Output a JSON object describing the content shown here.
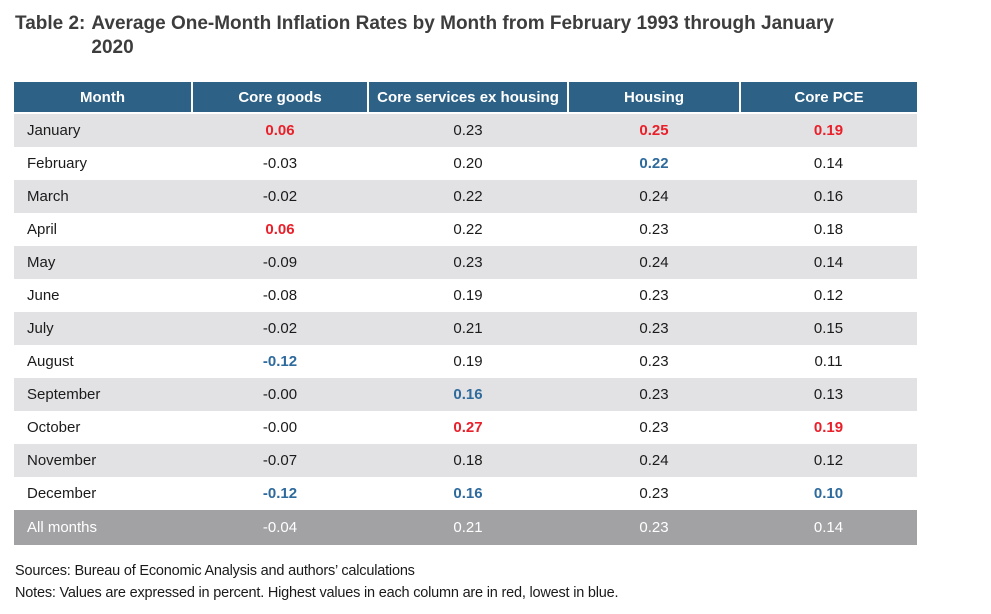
{
  "title": {
    "label": "Table 2:",
    "text": "Average One-Month Inflation Rates by Month from February 1993 through January 2020"
  },
  "colors": {
    "header_bg": "#2d6186",
    "striped_row_bg": "#e2e2e4",
    "summary_row_bg": "#a2a2a4",
    "highest_value": "#e9202a",
    "lowest_value": "#2e6a9c"
  },
  "table": {
    "columns": [
      "Month",
      "Core goods",
      "Core services ex housing",
      "Housing",
      "Core PCE"
    ],
    "rows": [
      {
        "month": "January",
        "values": [
          "0.06",
          "0.23",
          "0.25",
          "0.19"
        ],
        "styles": [
          "high",
          "normal",
          "high",
          "high"
        ]
      },
      {
        "month": "February",
        "values": [
          "-0.03",
          "0.20",
          "0.22",
          "0.14"
        ],
        "styles": [
          "normal",
          "normal",
          "low",
          "normal"
        ]
      },
      {
        "month": "March",
        "values": [
          "-0.02",
          "0.22",
          "0.24",
          "0.16"
        ],
        "styles": [
          "normal",
          "normal",
          "normal",
          "normal"
        ]
      },
      {
        "month": "April",
        "values": [
          "0.06",
          "0.22",
          "0.23",
          "0.18"
        ],
        "styles": [
          "high",
          "normal",
          "normal",
          "normal"
        ]
      },
      {
        "month": "May",
        "values": [
          "-0.09",
          "0.23",
          "0.24",
          "0.14"
        ],
        "styles": [
          "normal",
          "normal",
          "normal",
          "normal"
        ]
      },
      {
        "month": "June",
        "values": [
          "-0.08",
          "0.19",
          "0.23",
          "0.12"
        ],
        "styles": [
          "normal",
          "normal",
          "normal",
          "normal"
        ]
      },
      {
        "month": "July",
        "values": [
          "-0.02",
          "0.21",
          "0.23",
          "0.15"
        ],
        "styles": [
          "normal",
          "normal",
          "normal",
          "normal"
        ]
      },
      {
        "month": "August",
        "values": [
          "-0.12",
          "0.19",
          "0.23",
          "0.11"
        ],
        "styles": [
          "low",
          "normal",
          "normal",
          "normal"
        ]
      },
      {
        "month": "September",
        "values": [
          "-0.00",
          "0.16",
          "0.23",
          "0.13"
        ],
        "styles": [
          "normal",
          "low",
          "normal",
          "normal"
        ]
      },
      {
        "month": "October",
        "values": [
          "-0.00",
          "0.27",
          "0.23",
          "0.19"
        ],
        "styles": [
          "normal",
          "high",
          "normal",
          "high"
        ]
      },
      {
        "month": "November",
        "values": [
          "-0.07",
          "0.18",
          "0.24",
          "0.12"
        ],
        "styles": [
          "normal",
          "normal",
          "normal",
          "normal"
        ]
      },
      {
        "month": "December",
        "values": [
          "-0.12",
          "0.16",
          "0.23",
          "0.10"
        ],
        "styles": [
          "low",
          "low",
          "normal",
          "low"
        ]
      }
    ],
    "summary": {
      "month": "All months",
      "values": [
        "-0.04",
        "0.21",
        "0.23",
        "0.14"
      ]
    }
  },
  "footer": {
    "sources": "Sources: Bureau of Economic Analysis and authors’ calculations",
    "notes": "Notes: Values are expressed in percent. Highest values in each column are in red, lowest in blue."
  }
}
